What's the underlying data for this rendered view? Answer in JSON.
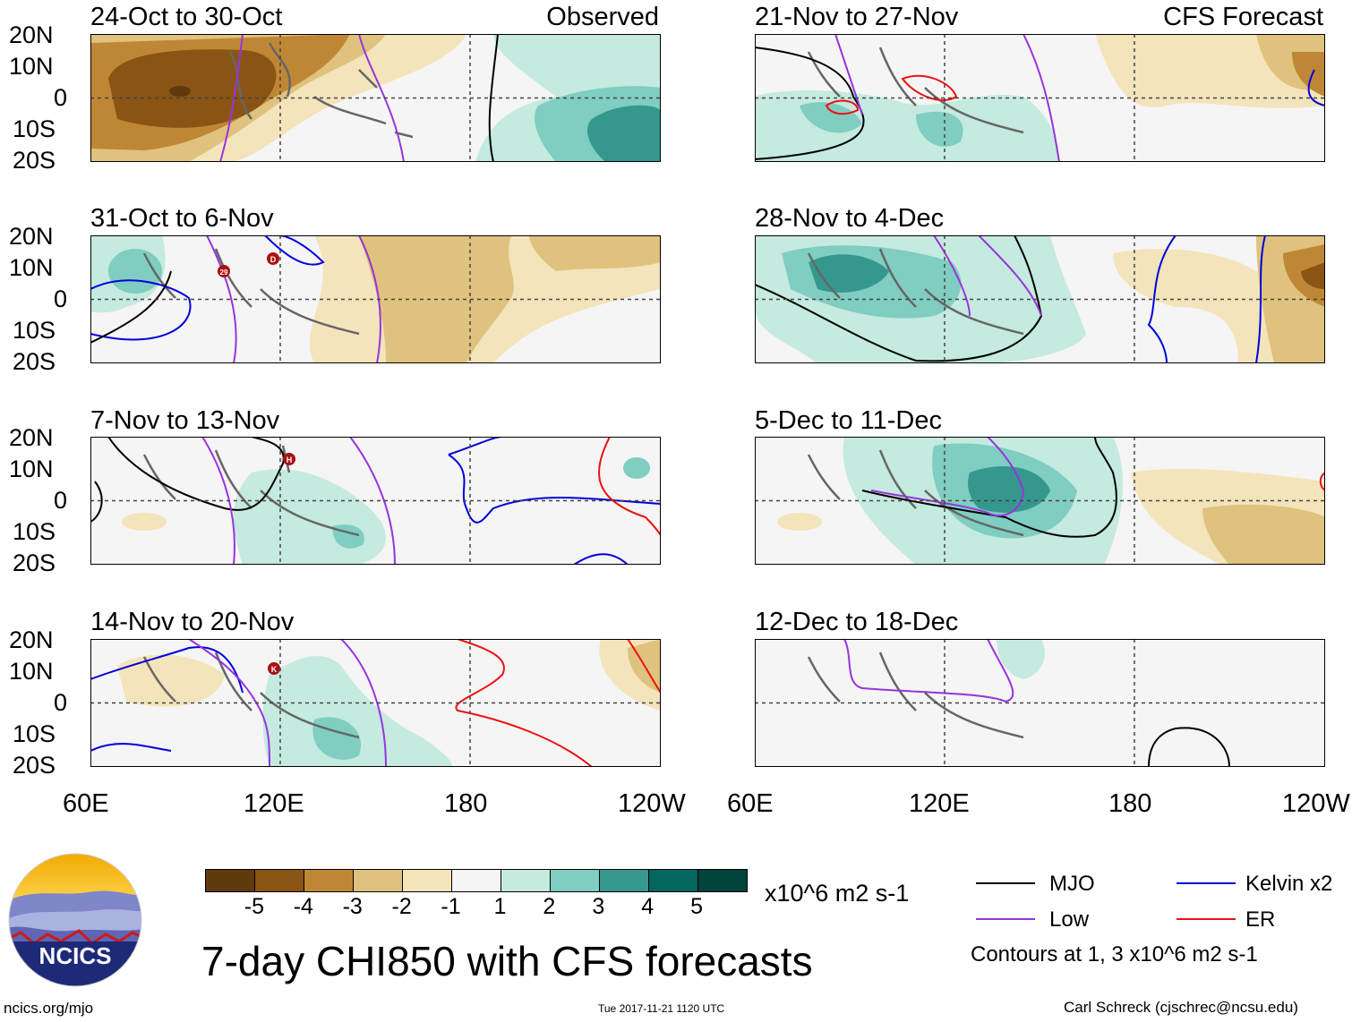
{
  "header": {
    "observed_label": "Observed",
    "forecast_label": "CFS Forecast"
  },
  "panels": [
    {
      "title": "24-Oct to 30-Oct"
    },
    {
      "title": "31-Oct to 6-Nov"
    },
    {
      "title": "7-Nov to 13-Nov"
    },
    {
      "title": "14-Nov to 20-Nov"
    },
    {
      "title": "21-Nov to 27-Nov"
    },
    {
      "title": "28-Nov to 4-Dec"
    },
    {
      "title": "5-Dec to 11-Dec"
    },
    {
      "title": "12-Dec to 18-Dec"
    }
  ],
  "axes": {
    "lat_labels": [
      "20N",
      "10N",
      "0",
      "10S",
      "20S"
    ],
    "lon_labels": [
      "60E",
      "120E",
      "180",
      "120W"
    ]
  },
  "storm_markers": [
    {
      "label": "29"
    },
    {
      "label": "D"
    },
    {
      "label": "H"
    },
    {
      "label": "K"
    }
  ],
  "colorbar": {
    "ticks": [
      "-5",
      "-4",
      "-3",
      "-2",
      "-1",
      "1",
      "2",
      "3",
      "4",
      "5"
    ],
    "units": "x10^6 m2 s-1",
    "colors": [
      "#5f3a0d",
      "#8a5414",
      "#bf8735",
      "#dfc27e",
      "#f4e4bb",
      "#f5f5f5",
      "#c5eadf",
      "#80cdc1",
      "#36978f",
      "#01665e",
      "#00433b"
    ]
  },
  "legend": {
    "items": [
      {
        "label": "MJO",
        "color": "#000000"
      },
      {
        "label": "Kelvin x2",
        "color": "#0000dd"
      },
      {
        "label": "Low",
        "color": "#9933dd"
      },
      {
        "label": "ER",
        "color": "#ee1111"
      }
    ],
    "note": "Contours at 1, 3 x10^6 m2 s-1"
  },
  "logo": {
    "text": "NCICS"
  },
  "main_title": "7-day CHI850 with CFS forecasts",
  "footer": {
    "url": "ncics.org/mjo",
    "timestamp": "Tue 2017-11-21 1120 UTC",
    "credit": "Carl Schreck (cjschrec@ncsu.edu)"
  }
}
